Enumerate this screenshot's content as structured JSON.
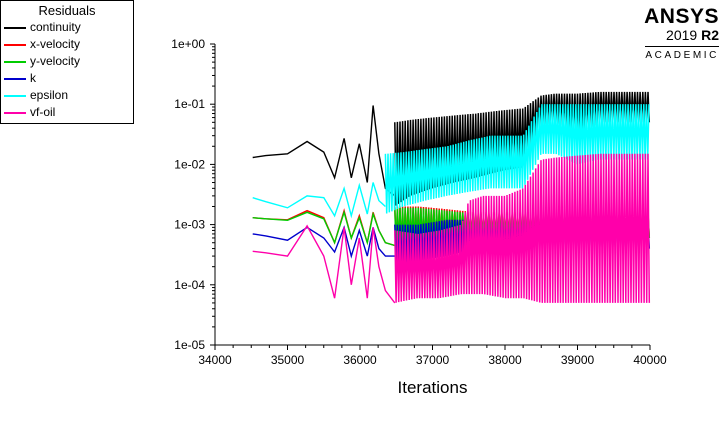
{
  "brand": {
    "name": "ANSYS",
    "version": "2019",
    "release": "R2",
    "edition": "ACADEMIC"
  },
  "chart_data": {
    "type": "line",
    "title": "",
    "xlabel": "Iterations",
    "ylabel": "",
    "xlim": [
      34000,
      40000
    ],
    "ylim": [
      1e-05,
      1
    ],
    "yscale": "log",
    "xticks": [
      "34000",
      "35000",
      "36000",
      "37000",
      "38000",
      "39000",
      "40000"
    ],
    "yticks": [
      "1e+00",
      "1e-01",
      "1e-02",
      "1e-03",
      "1e-04",
      "1e-05"
    ],
    "grid": false,
    "legend_title": "Residuals",
    "legend_position": "top-left",
    "series": [
      {
        "name": "continuity",
        "color": "#000000",
        "x": [
          34520,
          34700,
          35000,
          35270,
          35500,
          35650,
          35780,
          35880,
          35990,
          36100,
          36180,
          36260,
          36350,
          36480
        ],
        "y": [
          0.013,
          0.014,
          0.015,
          0.024,
          0.016,
          0.006,
          0.027,
          0.006,
          0.022,
          0.005,
          0.095,
          0.015,
          0.004,
          0.003
        ],
        "band": {
          "x": [
            36480,
            36700,
            37000,
            37300,
            37600,
            37800,
            38000,
            38250,
            38500,
            38700,
            39000,
            39300,
            39600,
            40000
          ],
          "hi": [
            0.05,
            0.055,
            0.06,
            0.065,
            0.07,
            0.075,
            0.08,
            0.085,
            0.14,
            0.15,
            0.15,
            0.16,
            0.16,
            0.16
          ],
          "lo": [
            0.002,
            0.003,
            0.004,
            0.005,
            0.006,
            0.007,
            0.008,
            0.009,
            0.045,
            0.05,
            0.03,
            0.05,
            0.05,
            0.05
          ]
        }
      },
      {
        "name": "x-velocity",
        "color": "#ff0000",
        "x": [
          34520,
          34700,
          35000,
          35270,
          35500,
          35650,
          35780,
          35880,
          35990,
          36100,
          36180,
          36260,
          36350,
          36480
        ],
        "y": [
          0.0013,
          0.00125,
          0.0012,
          0.0017,
          0.0013,
          0.0005,
          0.0017,
          0.0006,
          0.0014,
          0.0005,
          0.0016,
          0.0008,
          0.0005,
          0.00045
        ],
        "band": {
          "x": [
            36480,
            36800,
            37200,
            37600,
            38000,
            38500,
            39000,
            39500,
            40000
          ],
          "hi": [
            0.002,
            0.002,
            0.0018,
            0.0016,
            0.0016,
            0.0016,
            0.0016,
            0.0016,
            0.0016
          ],
          "lo": [
            0.0004,
            0.0004,
            0.0005,
            0.0006,
            0.0006,
            0.0006,
            0.0006,
            0.0006,
            0.0006
          ]
        }
      },
      {
        "name": "y-velocity",
        "color": "#00cc00",
        "x": [
          34520,
          34700,
          35000,
          35270,
          35500,
          35650,
          35780,
          35880,
          35990,
          36100,
          36180,
          36260,
          36350,
          36480
        ],
        "y": [
          0.0013,
          0.00125,
          0.00118,
          0.0016,
          0.00125,
          0.0005,
          0.0016,
          0.0006,
          0.0013,
          0.0005,
          0.0015,
          0.0008,
          0.0005,
          0.00045
        ],
        "band": {
          "x": [
            36480,
            36800,
            37200,
            37600,
            38000,
            38500,
            39000,
            39500,
            40000
          ],
          "hi": [
            0.0019,
            0.0019,
            0.0017,
            0.0015,
            0.0015,
            0.0015,
            0.0015,
            0.0015,
            0.0015
          ],
          "lo": [
            0.0004,
            0.0004,
            0.0005,
            0.0006,
            0.0006,
            0.0006,
            0.0006,
            0.0006,
            0.0006
          ]
        }
      },
      {
        "name": "k",
        "color": "#0000cc",
        "x": [
          34520,
          34700,
          35000,
          35270,
          35500,
          35650,
          35780,
          35880,
          35990,
          36100,
          36180,
          36260,
          36350,
          36480
        ],
        "y": [
          0.0007,
          0.00065,
          0.00055,
          0.0009,
          0.0006,
          0.00035,
          0.0009,
          0.0003,
          0.0008,
          0.0003,
          0.0009,
          0.0004,
          0.0003,
          0.0003
        ],
        "band": {
          "x": [
            36480,
            36800,
            37200,
            37600,
            38000,
            38500,
            39000,
            39500,
            40000
          ],
          "hi": [
            0.001,
            0.001,
            0.0012,
            0.0012,
            0.0012,
            0.0012,
            0.0012,
            0.0012,
            0.0012
          ],
          "lo": [
            0.0002,
            0.00025,
            0.0003,
            0.0004,
            0.0004,
            0.0004,
            0.0004,
            0.0004,
            0.0004
          ]
        }
      },
      {
        "name": "epsilon",
        "color": "#00ffff",
        "x": [
          34520,
          34700,
          35000,
          35270,
          35500,
          35650,
          35780,
          35880,
          35990,
          36100,
          36180,
          36260,
          36350
        ],
        "y": [
          0.0028,
          0.0024,
          0.0019,
          0.003,
          0.0028,
          0.0014,
          0.004,
          0.0014,
          0.0045,
          0.0015,
          0.005,
          0.0025,
          0.002
        ],
        "band": {
          "x": [
            36350,
            36600,
            36900,
            37200,
            37500,
            37800,
            38000,
            38250,
            38500,
            38700,
            39000,
            39300,
            39600,
            40000
          ],
          "hi": [
            0.015,
            0.016,
            0.018,
            0.02,
            0.025,
            0.03,
            0.03,
            0.03,
            0.1,
            0.1,
            0.1,
            0.1,
            0.1,
            0.1
          ],
          "lo": [
            0.0015,
            0.002,
            0.0025,
            0.003,
            0.0035,
            0.004,
            0.004,
            0.004,
            0.015,
            0.015,
            0.01,
            0.012,
            0.012,
            0.012
          ]
        }
      },
      {
        "name": "vf-oil",
        "color": "#ff00aa",
        "x": [
          34520,
          34700,
          35000,
          35270,
          35500,
          35650,
          35780,
          35880,
          35990,
          36100,
          36180,
          36260,
          36350,
          36480
        ],
        "y": [
          0.00036,
          0.00034,
          0.0003,
          0.00095,
          0.0003,
          6e-05,
          0.0009,
          0.0001,
          0.0006,
          6e-05,
          0.0009,
          0.0002,
          8e-05,
          5e-05
        ],
        "band": {
          "x": [
            36480,
            36800,
            37100,
            37400,
            37500,
            37700,
            38000,
            38250,
            38500,
            38700,
            39000,
            39300,
            39600,
            39800,
            40000
          ],
          "hi": [
            0.0008,
            0.0007,
            0.0008,
            0.001,
            0.0025,
            0.003,
            0.003,
            0.004,
            0.012,
            0.013,
            0.014,
            0.015,
            0.015,
            0.015,
            0.015
          ],
          "lo": [
            5e-05,
            6e-05,
            6e-05,
            7e-05,
            7e-05,
            7e-05,
            6e-05,
            6e-05,
            5e-05,
            5e-05,
            5e-05,
            5e-05,
            5e-05,
            5e-05,
            5e-05
          ]
        }
      }
    ]
  }
}
